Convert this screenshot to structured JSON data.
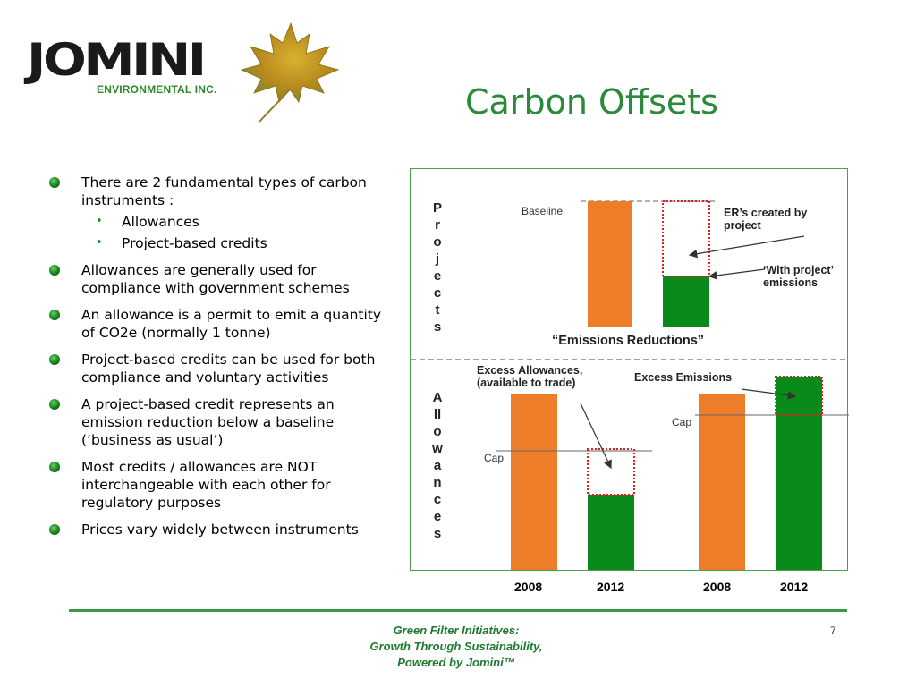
{
  "logo": {
    "word": "JOMINI",
    "sub": "ENVIRONMENTAL INC."
  },
  "title": "Carbon Offsets",
  "bullets": [
    {
      "text": "There are 2 fundamental types of carbon instruments :",
      "subs": [
        "Allowances",
        "Project-based credits"
      ]
    },
    {
      "text": "Allowances are generally used for compliance with government schemes"
    },
    {
      "text": "An allowance is a permit to emit a quantity of CO2e (normally 1 tonne)"
    },
    {
      "text": "Project-based credits can be used for both compliance and voluntary activities"
    },
    {
      "text": "A project-based credit represents an emission reduction below a baseline (‘business as usual’)"
    },
    {
      "text": "Most credits / allowances are NOT interchangeable with each other for regulatory purposes"
    },
    {
      "text": "Prices vary widely between instruments"
    }
  ],
  "diagram": {
    "projects_label": [
      "P",
      "r",
      "o",
      "j",
      "e",
      "c",
      "t",
      "s"
    ],
    "allowances_label": [
      "A",
      "ll",
      "o",
      "w",
      "a",
      "n",
      "c",
      "e",
      "s"
    ],
    "baseline": "Baseline",
    "er_created": "ER’s created by project",
    "with_project": "‘With project’ emissions",
    "emissions_reductions": "“Emissions Reductions”",
    "excess_allowances": "Excess Allowances, (available to trade)",
    "excess_emissions": "Excess Emissions",
    "cap1": "Cap",
    "cap2": "Cap",
    "years": [
      "2008",
      "2012",
      "2008",
      "2012"
    ],
    "colors": {
      "orange": "#ee7d2a",
      "green": "#0a8a1a",
      "dashed_red": "#e02020"
    }
  },
  "footer": {
    "line1": "Green Filter Initiatives:",
    "line2": "Growth Through Sustainability,",
    "line3": "Powered by Jomini™"
  },
  "page_number": "7"
}
